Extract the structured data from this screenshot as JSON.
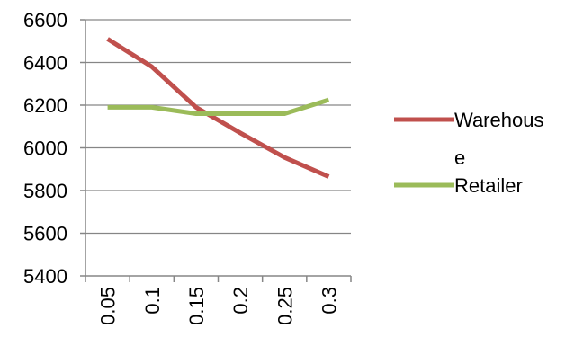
{
  "chart_data": {
    "type": "line",
    "x": [
      "0.05",
      "0.1",
      "0.15",
      "0.2",
      "0.25",
      "0.3"
    ],
    "ylim": [
      5400,
      6600
    ],
    "yticks": [
      5400,
      5600,
      5800,
      6000,
      6200,
      6400,
      6600
    ],
    "grid": true,
    "legend_position": "right",
    "series": [
      {
        "name_lines": [
          "Warehous",
          "e"
        ],
        "name": "Warehouse",
        "color": "#C0504D",
        "values": [
          6510,
          6380,
          6190,
          6070,
          5955,
          5865
        ]
      },
      {
        "name_lines": [
          "Retailer"
        ],
        "name": "Retailer",
        "color": "#9BBB59",
        "values": [
          6190,
          6190,
          6160,
          6160,
          6160,
          6225
        ]
      }
    ]
  }
}
